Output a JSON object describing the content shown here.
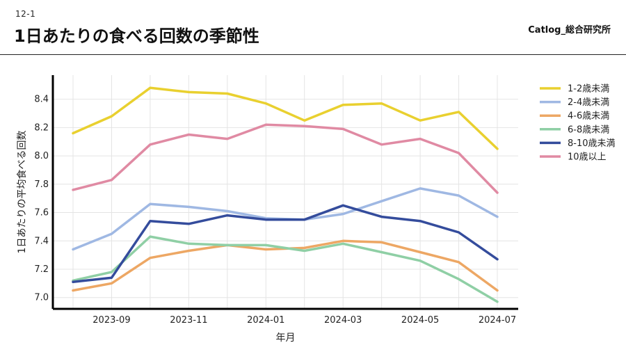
{
  "header": {
    "section_no": "12-1",
    "title": "1日あたりの食べる回数の季節性",
    "brand": "Catlog_総合研究所"
  },
  "chart_data": {
    "type": "line",
    "title": "1日あたりの食べる回数の季節性",
    "xlabel": "年月",
    "ylabel": "1日あたりの平均食べる回数",
    "x": [
      "2023-08",
      "2023-09",
      "2023-10",
      "2023-11",
      "2023-12",
      "2024-01",
      "2024-02",
      "2024-03",
      "2024-04",
      "2024-05",
      "2024-06",
      "2024-07"
    ],
    "x_tick_labels": [
      "2023-09",
      "2023-11",
      "2024-01",
      "2024-03",
      "2024-05",
      "2024-07"
    ],
    "y_ticks": [
      7.0,
      7.2,
      7.4,
      7.6,
      7.8,
      8.0,
      8.2,
      8.4
    ],
    "y_tick_labels": [
      "7.0",
      "7.2",
      "7.4",
      "7.6",
      "7.8",
      "8.0",
      "8.2",
      "8.4"
    ],
    "ylim": [
      6.92,
      8.57
    ],
    "grid": true,
    "legend_position": "right",
    "series": [
      {
        "name": "1-2歳未満",
        "color": "#e9d02f",
        "values": [
          8.16,
          8.28,
          8.48,
          8.45,
          8.44,
          8.37,
          8.25,
          8.36,
          8.37,
          8.25,
          8.31,
          8.05
        ]
      },
      {
        "name": "2-4歳未満",
        "color": "#9fb8e3",
        "values": [
          7.34,
          7.45,
          7.66,
          7.64,
          7.61,
          7.56,
          7.55,
          7.59,
          7.68,
          7.77,
          7.72,
          7.57
        ]
      },
      {
        "name": "4-6歳未満",
        "color": "#eda764",
        "values": [
          7.05,
          7.1,
          7.28,
          7.33,
          7.37,
          7.34,
          7.35,
          7.4,
          7.39,
          7.32,
          7.25,
          7.05
        ]
      },
      {
        "name": "6-8歳未満",
        "color": "#8fcfa5",
        "values": [
          7.12,
          7.18,
          7.43,
          7.38,
          7.37,
          7.37,
          7.33,
          7.38,
          7.32,
          7.26,
          7.13,
          6.97
        ]
      },
      {
        "name": "8-10歳未満",
        "color": "#344c9c",
        "values": [
          7.11,
          7.14,
          7.54,
          7.52,
          7.58,
          7.55,
          7.55,
          7.65,
          7.57,
          7.54,
          7.46,
          7.27
        ]
      },
      {
        "name": "10歳以上",
        "color": "#e08aa3",
        "values": [
          7.76,
          7.83,
          8.08,
          8.15,
          8.12,
          8.22,
          8.21,
          8.19,
          8.08,
          8.12,
          8.02,
          7.74
        ]
      }
    ]
  }
}
